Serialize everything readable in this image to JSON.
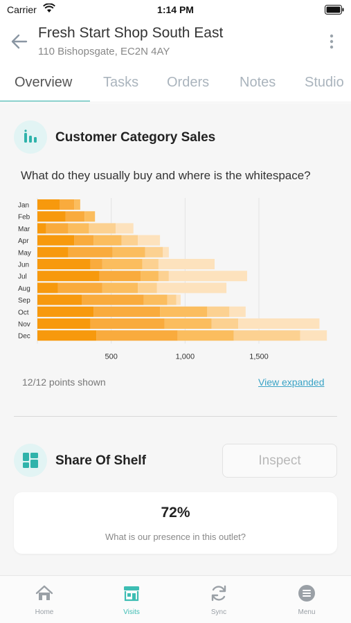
{
  "status_bar": {
    "carrier": "Carrier",
    "time": "1:14 PM"
  },
  "header": {
    "title": "Fresh Start Shop South East",
    "subtitle": "110 Bishopsgate, EC2N 4AY"
  },
  "tabs": [
    {
      "label": "Overview",
      "active": true
    },
    {
      "label": "Tasks",
      "active": false
    },
    {
      "label": "Orders",
      "active": false
    },
    {
      "label": "Notes",
      "active": false
    },
    {
      "label": "Studio",
      "active": false
    }
  ],
  "category_sales": {
    "title": "Customer Category Sales",
    "question": "What do they usually buy and where is the whitespace?",
    "points_shown": "12/12 points shown",
    "view_expanded_label": "View expanded"
  },
  "share_of_shelf": {
    "title": "Share Of Shelf",
    "inspect_label": "Inspect",
    "value": "72%",
    "question": "What is our presence in this outlet?"
  },
  "bottom_nav": [
    {
      "label": "Home",
      "icon": "home-icon",
      "active": false
    },
    {
      "label": "Visits",
      "icon": "store-icon",
      "active": true
    },
    {
      "label": "Sync",
      "icon": "sync-icon",
      "active": false
    },
    {
      "label": "Menu",
      "icon": "menu-icon",
      "active": false
    }
  ],
  "colors": {
    "accent": "#3dbdb3",
    "link": "#3aa3c6",
    "series": [
      "#f7990d",
      "#f9ab3d",
      "#fbbd5e",
      "#fcd191",
      "#fde2bd"
    ]
  },
  "chart_data": {
    "type": "bar",
    "orientation": "horizontal",
    "stacked": true,
    "categories": [
      "Jan",
      "Feb",
      "Mar",
      "Apr",
      "May",
      "Jun",
      "Jul",
      "Aug",
      "Sep",
      "Oct",
      "Nov",
      "Dec"
    ],
    "series": [
      {
        "values": [
          150,
          190,
          60,
          250,
          210,
          360,
          420,
          140,
          300,
          380,
          360,
          400
        ]
      },
      {
        "values": [
          100,
          130,
          150,
          130,
          300,
          80,
          280,
          300,
          420,
          450,
          500,
          550
        ]
      },
      {
        "values": [
          40,
          70,
          140,
          190,
          220,
          270,
          120,
          240,
          160,
          320,
          320,
          380
        ]
      },
      {
        "values": [
          0,
          0,
          180,
          110,
          120,
          110,
          70,
          130,
          60,
          150,
          180,
          450
        ]
      },
      {
        "values": [
          0,
          0,
          120,
          150,
          40,
          380,
          530,
          470,
          30,
          110,
          550,
          180
        ]
      }
    ],
    "x_ticks": [
      "500",
      "1,000",
      "1,500"
    ],
    "x_tick_values": [
      500,
      1000,
      1500
    ],
    "xlim": [
      0,
      1950
    ],
    "grid": true
  }
}
